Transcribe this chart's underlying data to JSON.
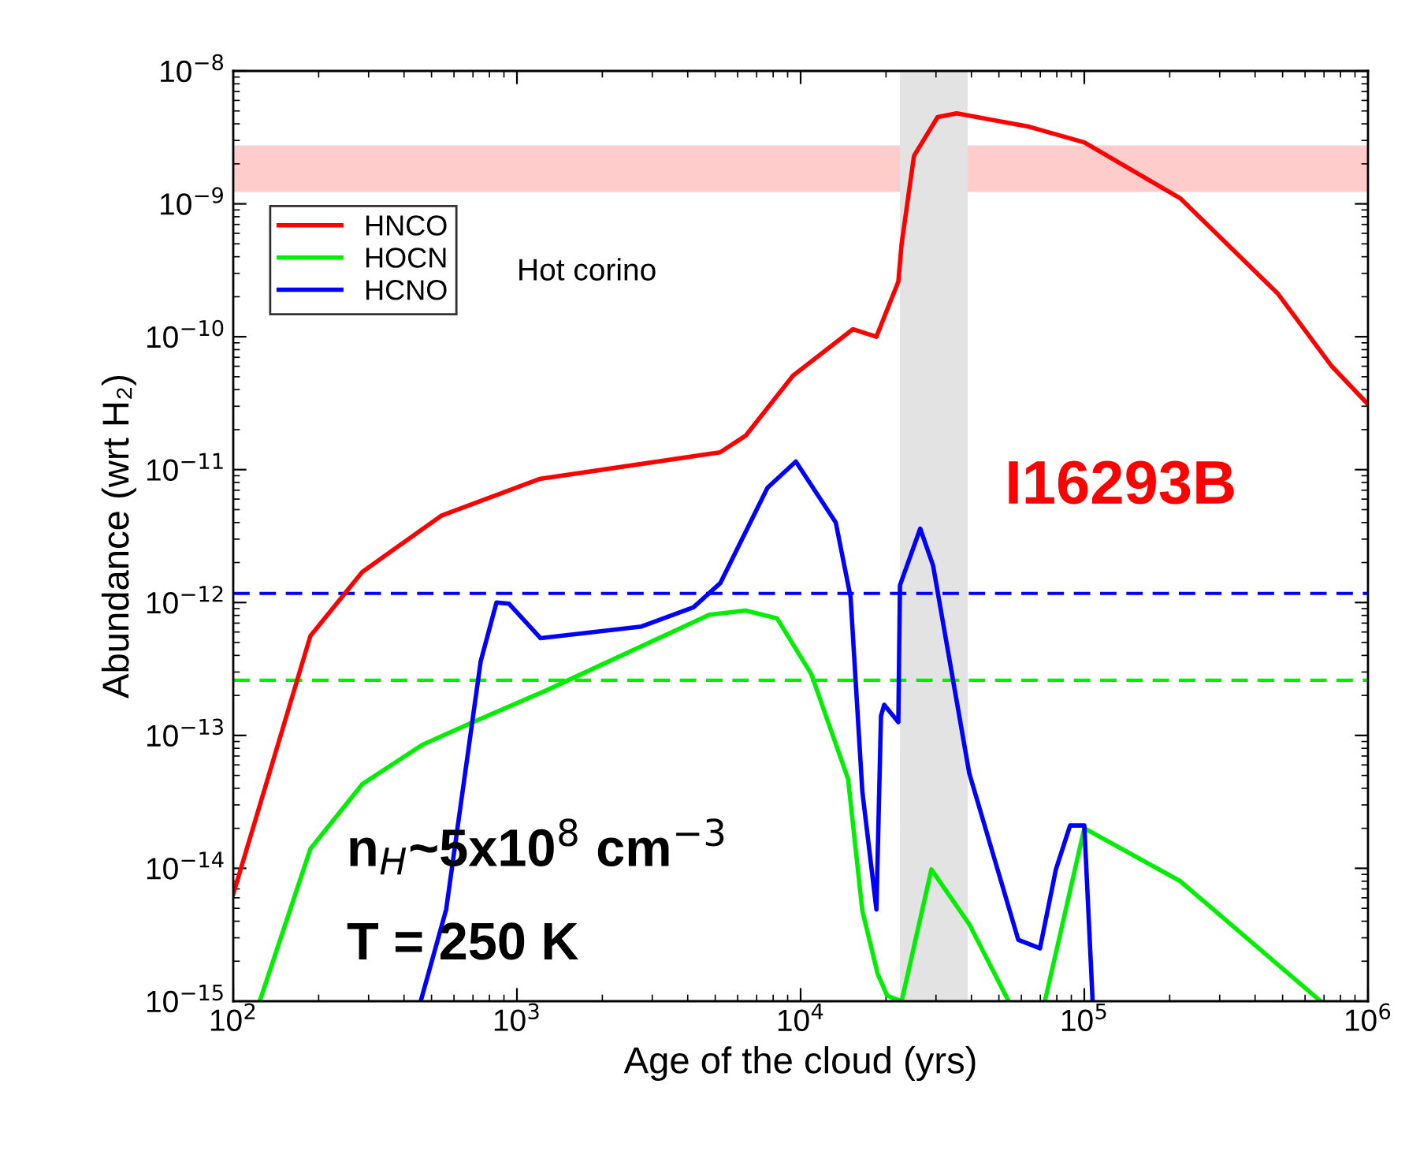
{
  "chart_data": {
    "type": "line",
    "xlabel": "Age of the cloud (yrs)",
    "ylabel": "Abundance (wrt H₂)",
    "log": "xy",
    "xlim": [
      100,
      1000000
    ],
    "ylim": [
      1e-15,
      1e-08
    ],
    "xticks": [
      {
        "value": 100,
        "label": "10$^{2}$"
      },
      {
        "value": 1000,
        "label": "10$^{3}$"
      },
      {
        "value": 10000,
        "label": "10$^{4}$"
      },
      {
        "value": 100000,
        "label": "10$^{5}$"
      },
      {
        "value": 1000000,
        "label": "10$^{6}$"
      }
    ],
    "yticks": [
      {
        "value": 1e-15,
        "label": "10$^{−15}$"
      },
      {
        "value": 1e-14,
        "label": "10$^{−14}$"
      },
      {
        "value": 1e-13,
        "label": "10$^{−13}$"
      },
      {
        "value": 1e-12,
        "label": "10$^{−12}$"
      },
      {
        "value": 1e-11,
        "label": "10$^{−11}$"
      },
      {
        "value": 1e-10,
        "label": "10$^{−10}$"
      },
      {
        "value": 1e-09,
        "label": "10$^{−9}$"
      },
      {
        "value": 1e-08,
        "label": "10$^{−8}$"
      }
    ],
    "grid": false,
    "legend": "top left",
    "marker": "none",
    "line_style": "solid",
    "series": [
      {
        "name": "HNCO",
        "color": "#ff0000",
        "x": [
          100,
          187,
          285,
          541,
          1200,
          5200,
          6400,
          9400,
          15300,
          18500,
          22100,
          22700,
          25100,
          30400,
          35500,
          64000,
          100000,
          218000,
          482000,
          745000,
          1000000
        ],
        "values": [
          6.4e-15,
          5.6e-13,
          1.7e-12,
          4.5e-12,
          8.5e-12,
          1.35e-11,
          1.8e-11,
          5.1e-11,
          1.14e-10,
          1e-10,
          2.6e-10,
          5e-10,
          2.3e-09,
          4.5e-09,
          4.8e-09,
          3.8e-09,
          2.9e-09,
          1.1e-09,
          2.1e-10,
          6e-11,
          3.1e-11
        ]
      },
      {
        "name": "HOCN",
        "color": "#00ee00",
        "x": [
          124,
          187,
          285,
          464,
          700,
          1280,
          4770,
          6400,
          8260,
          10900,
          14700,
          16500,
          18700,
          20200,
          22700,
          28900,
          39300,
          54100,
          63000,
          72600,
          100000,
          218000,
          681000
        ],
        "values": [
          1e-15,
          1.4e-14,
          4.3e-14,
          8.5e-14,
          1.26e-13,
          2.2e-13,
          8.1e-13,
          8.7e-13,
          7.6e-13,
          2.9e-13,
          4.7e-14,
          4.8e-15,
          1.6e-15,
          1.1e-15,
          1e-15,
          9.8e-15,
          3.8e-15,
          1e-15,
          null,
          1e-15,
          2e-14,
          8e-15,
          1e-15
        ]
      },
      {
        "name": "HCNO",
        "color": "#0000ff",
        "x": [
          458,
          563,
          745,
          847,
          938,
          1210,
          2750,
          4190,
          5210,
          7640,
          9620,
          13300,
          15000,
          16500,
          18500,
          19200,
          19700,
          22100,
          22400,
          26400,
          29300,
          39300,
          58500,
          69800,
          79400,
          89100,
          100000,
          107000
        ],
        "values": [
          1e-15,
          4.9e-15,
          3.6e-13,
          1e-12,
          9.8e-13,
          5.4e-13,
          6.6e-13,
          9.2e-13,
          1.4e-12,
          7.3e-12,
          1.15e-11,
          4e-12,
          1.1e-12,
          3.8e-14,
          4.9e-15,
          1.4e-13,
          1.7e-13,
          1.26e-13,
          1.35e-12,
          3.6e-12,
          1.9e-12,
          5.2e-14,
          2.9e-15,
          2.5e-15,
          9.8e-15,
          2.1e-14,
          2.1e-14,
          1e-15
        ]
      }
    ],
    "ref_lines": [
      {
        "axis": "y",
        "value": 1.17e-12,
        "color": "#0000ff",
        "line_style": "dashed"
      },
      {
        "axis": "y",
        "value": 2.6e-13,
        "color": "#00ee00",
        "line_style": "dashed"
      }
    ],
    "bands": [
      {
        "axis": "y",
        "from": 1.23e-09,
        "to": 2.75e-09,
        "color": "#ffcccc"
      },
      {
        "axis": "x",
        "from": 22400,
        "to": 38800,
        "color": "#e3e3e3"
      }
    ],
    "annotations": [
      "Hot corino",
      "I16293B",
      "n$_{H}$~5x10$^{8}$ cm$^{−3}$",
      "T = 250 K"
    ]
  }
}
